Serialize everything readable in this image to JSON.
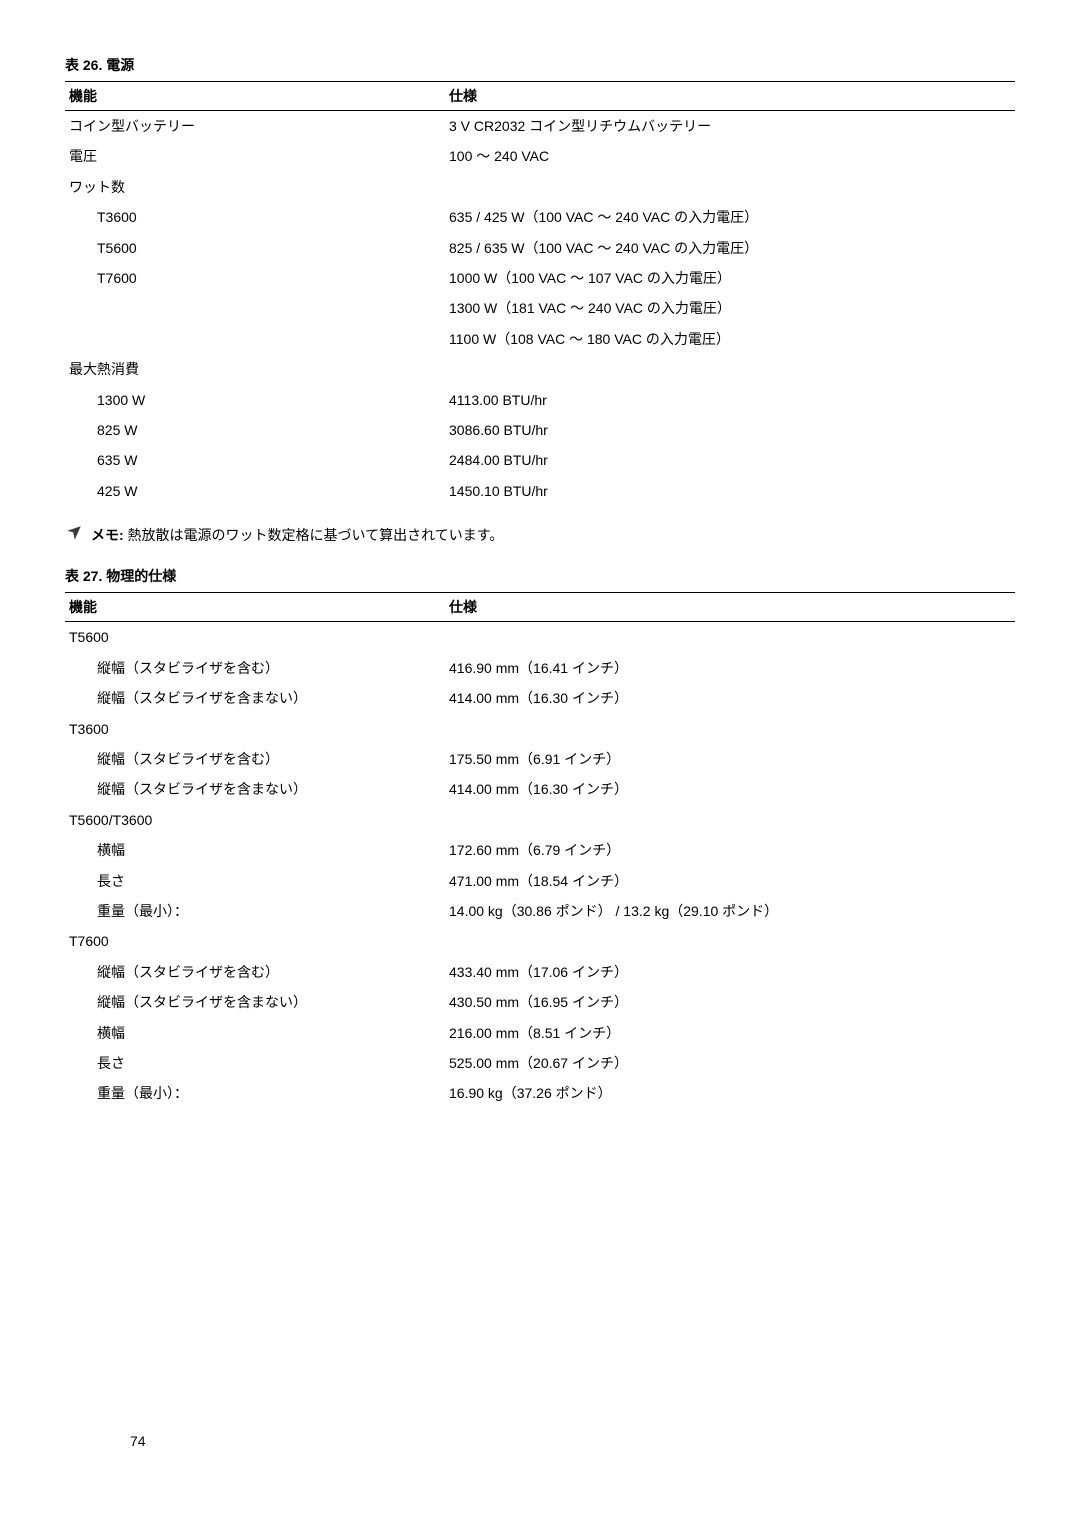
{
  "table26": {
    "title": "表 26. 電源",
    "header": {
      "c1": "機能",
      "c2": "仕様"
    },
    "rows": [
      {
        "c1": "コイン型バッテリー",
        "c2": "3 V CR2032 コイン型リチウムバッテリー",
        "indent": false
      },
      {
        "c1": "電圧",
        "c2": "100 ～ 240 VAC",
        "indent": false
      },
      {
        "c1": "ワット数",
        "c2": "",
        "indent": false
      },
      {
        "c1": "T3600",
        "c2": "635 / 425 W（100 VAC ～ 240 VAC の入力電圧）",
        "indent": true
      },
      {
        "c1": "T5600",
        "c2": "825 / 635 W（100 VAC ～ 240 VAC の入力電圧）",
        "indent": true
      },
      {
        "c1": "T7600",
        "c2": "1000 W（100 VAC ～ 107 VAC の入力電圧）",
        "indent": true
      },
      {
        "c1": "",
        "c2": "1300 W（181 VAC ～ 240 VAC の入力電圧）",
        "indent": true
      },
      {
        "c1": "",
        "c2": "1100 W（108 VAC ～ 180 VAC の入力電圧）",
        "indent": true
      },
      {
        "c1": "最大熱消費",
        "c2": "",
        "indent": false
      },
      {
        "c1": "1300 W",
        "c2": "4113.00 BTU/hr",
        "indent": true
      },
      {
        "c1": "825 W",
        "c2": "3086.60 BTU/hr",
        "indent": true
      },
      {
        "c1": "635 W",
        "c2": "2484.00 BTU/hr",
        "indent": true
      },
      {
        "c1": "425 W",
        "c2": "1450.10 BTU/hr",
        "indent": true
      }
    ]
  },
  "note": {
    "label": "メモ:",
    "text": " 熱放散は電源のワット数定格に基づいて算出されています。"
  },
  "table27": {
    "title": "表 27. 物理的仕様",
    "header": {
      "c1": "機能",
      "c2": "仕様"
    },
    "rows": [
      {
        "c1": "T5600",
        "c2": "",
        "indent": false,
        "bold": true
      },
      {
        "c1": "縦幅（スタビライザを含む）",
        "c2": "416.90 mm（16.41 インチ）",
        "indent": true
      },
      {
        "c1": "縦幅（スタビライザを含まない）",
        "c2": "414.00 mm（16.30 インチ）",
        "indent": true
      },
      {
        "c1": "T3600",
        "c2": "",
        "indent": false,
        "bold": true
      },
      {
        "c1": "縦幅（スタビライザを含む）",
        "c2": "175.50 mm（6.91 インチ）",
        "indent": true
      },
      {
        "c1": "縦幅（スタビライザを含まない）",
        "c2": "414.00 mm（16.30 インチ）",
        "indent": true
      },
      {
        "c1": "T5600/T3600",
        "c2": "",
        "indent": false,
        "bold": true
      },
      {
        "c1": "横幅",
        "c2": "172.60 mm（6.79 インチ）",
        "indent": true
      },
      {
        "c1": "長さ",
        "c2": "471.00 mm（18.54 インチ）",
        "indent": true
      },
      {
        "c1": "重量（最小）：",
        "c2": "14.00 kg（30.86 ポンド） / 13.2 kg（29.10 ポンド）",
        "indent": true
      },
      {
        "c1": "T7600",
        "c2": "",
        "indent": false,
        "bold": true
      },
      {
        "c1": "縦幅（スタビライザを含む）",
        "c2": "433.40 mm（17.06 インチ）",
        "indent": true
      },
      {
        "c1": "縦幅（スタビライザを含まない）",
        "c2": "430.50 mm（16.95 インチ）",
        "indent": true
      },
      {
        "c1": "横幅",
        "c2": "216.00 mm（8.51 インチ）",
        "indent": true
      },
      {
        "c1": "長さ",
        "c2": "525.00 mm（20.67 インチ）",
        "indent": true
      },
      {
        "c1": "重量（最小）：",
        "c2": "16.90 kg（37.26 ポンド）",
        "indent": true
      }
    ]
  },
  "pageNumber": "74"
}
